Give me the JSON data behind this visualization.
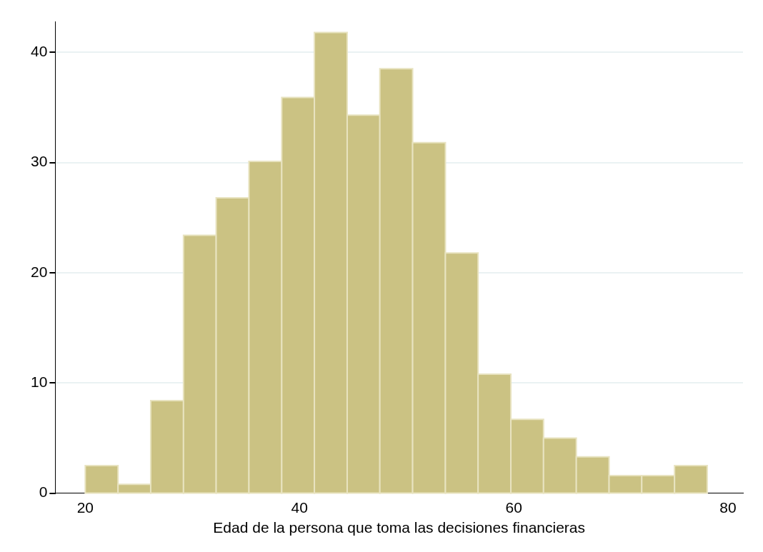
{
  "chart_data": {
    "type": "histogram",
    "xlabel": "Edad de la persona que toma las decisiones financieras",
    "bins": [
      20,
      23.06,
      26.11,
      29.17,
      32.22,
      35.28,
      38.34,
      41.39,
      44.45,
      47.5,
      50.56,
      53.62,
      56.67,
      59.73,
      62.78,
      65.84,
      68.9,
      71.95,
      75.01,
      78.06
    ],
    "values": [
      2.5,
      0.8,
      8.4,
      23.4,
      26.8,
      30.1,
      35.9,
      41.8,
      34.3,
      38.5,
      31.8,
      21.8,
      10.8,
      6.7,
      5.0,
      3.3,
      1.6,
      1.6,
      2.5
    ],
    "color": "#cbc283",
    "xlim": [
      17.2,
      81.4
    ],
    "xticks": [
      20,
      40,
      60,
      80
    ],
    "ylim": [
      0,
      42.8
    ],
    "yticks": [
      0,
      10,
      20,
      30,
      40
    ],
    "grid": "y",
    "legend": false
  }
}
